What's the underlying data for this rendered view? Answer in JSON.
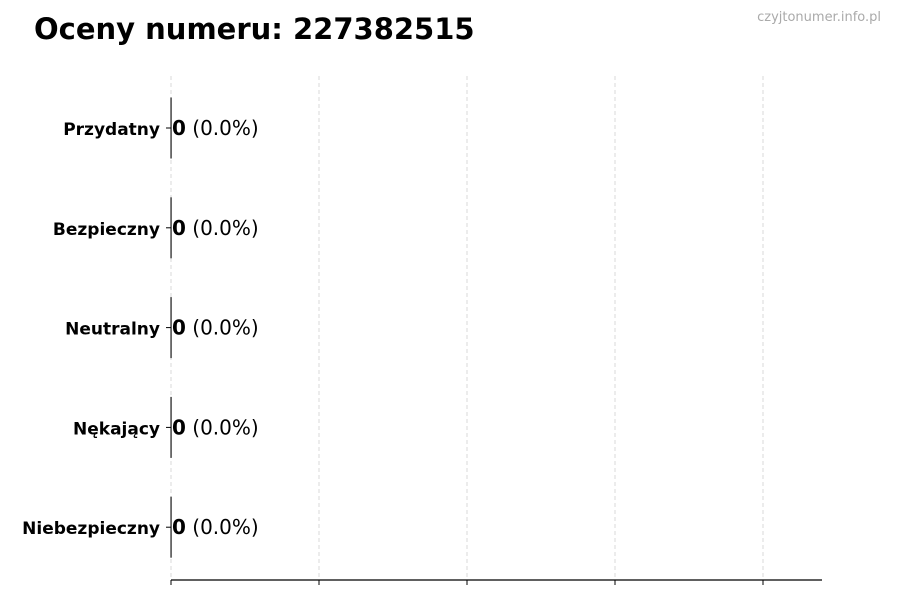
{
  "watermark": "czyjtonumer.info.pl",
  "chart_data": {
    "type": "bar",
    "orientation": "horizontal",
    "title": "Oceny numeru: 227382515",
    "categories": [
      "Przydatny",
      "Bezpieczny",
      "Neutralny",
      "Nękający",
      "Niebezpieczny"
    ],
    "values": [
      0,
      0,
      0,
      0,
      0
    ],
    "data_labels": [
      "0 (0.0%)",
      "0 (0.0%)",
      "0 (0.0%)",
      "0 (0.0%)",
      "0 (0.0%)"
    ],
    "counts": [
      "0",
      "0",
      "0",
      "0",
      "0"
    ],
    "percents": [
      "(0.0%)",
      "(0.0%)",
      "(0.0%)",
      "(0.0%)",
      "(0.0%)"
    ],
    "grid": "x dashed",
    "x_tick_labels": "none",
    "colors": {
      "grid": "#d0d0d0",
      "axis": "#000000",
      "bar_edge": "#000000"
    }
  }
}
